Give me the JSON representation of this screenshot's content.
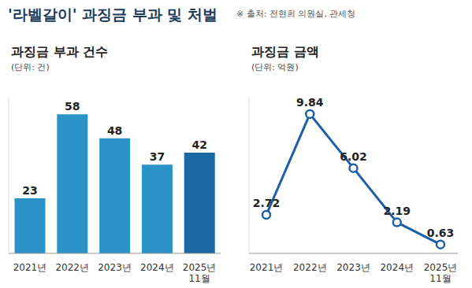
{
  "title": "'라벨갈이' 과징금 부과 및 처벌",
  "source": "※ 출처: 전현희 의원실, 관세청",
  "chart_data": [
    {
      "type": "bar",
      "title": "과징금 부과 건수",
      "subtitle": "(단위: 건)",
      "categories": [
        "2021년",
        "2022년",
        "2023년",
        "2024년",
        "2025년 11월"
      ],
      "values": [
        23,
        58,
        48,
        37,
        42
      ],
      "colors": [
        "#2c93c8",
        "#2c93c8",
        "#2c93c8",
        "#2c93c8",
        "#1b67a3"
      ],
      "ylim": [
        0,
        65
      ],
      "data_labels": true,
      "tick_labels": "x",
      "grid": false
    },
    {
      "type": "line",
      "title": "과징금 금액",
      "subtitle": "(단위: 억원)",
      "categories": [
        "2021년",
        "2022년",
        "2023년",
        "2024년",
        "2025년 11월"
      ],
      "values": [
        2.72,
        9.84,
        6.02,
        2.19,
        0.63
      ],
      "color": "#1c5fa6",
      "marker": "circle",
      "ylim": [
        0,
        11
      ],
      "data_labels": true,
      "tick_labels": "x",
      "grid": false
    }
  ]
}
